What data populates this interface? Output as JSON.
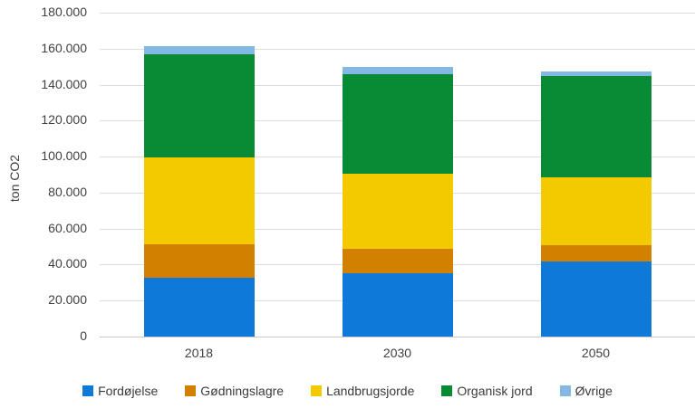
{
  "chart_data": {
    "type": "bar",
    "stacked": true,
    "title": "",
    "xlabel": "",
    "ylabel": "ton CO2",
    "ylim": [
      0,
      180000
    ],
    "grid": true,
    "legend_position": "bottom",
    "categories": [
      "2018",
      "2030",
      "2050"
    ],
    "series": [
      {
        "name": "Fordøjelse",
        "color": "#0f79d9",
        "values": [
          32500,
          35000,
          41500
        ]
      },
      {
        "name": "Gødningslagre",
        "color": "#d28000",
        "values": [
          19000,
          14000,
          9500
        ]
      },
      {
        "name": "Landbrugsjorde",
        "color": "#f3ca00",
        "values": [
          48000,
          41500,
          37500
        ]
      },
      {
        "name": "Organisk jord",
        "color": "#088b34",
        "values": [
          57500,
          55500,
          56500
        ]
      },
      {
        "name": "Øvrige",
        "color": "#83b8e2",
        "values": [
          4500,
          4000,
          2500
        ]
      }
    ],
    "totals": [
      161500,
      150000,
      147500
    ],
    "y_ticks": [
      {
        "value": 0,
        "label": "0"
      },
      {
        "value": 20000,
        "label": "20.000"
      },
      {
        "value": 40000,
        "label": "40.000"
      },
      {
        "value": 60000,
        "label": "60.000"
      },
      {
        "value": 80000,
        "label": "80.000"
      },
      {
        "value": 100000,
        "label": "100.000"
      },
      {
        "value": 120000,
        "label": "120.000"
      },
      {
        "value": 140000,
        "label": "140.000"
      },
      {
        "value": 160000,
        "label": "160.000"
      },
      {
        "value": 180000,
        "label": "180.000"
      }
    ]
  },
  "colors": {
    "gridline": "#dcdcdc",
    "zero_axis": "#c9c9c9",
    "axis_text": "#404040"
  }
}
